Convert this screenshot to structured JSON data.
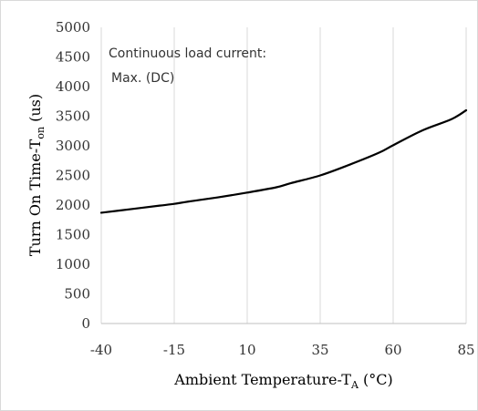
{
  "chart_data": {
    "type": "line",
    "title": "",
    "xlabel_main": "Ambient Temperature-T",
    "xlabel_sub": "A",
    "xlabel_unit": " (°C)",
    "ylabel_main": "Turn On Time-T",
    "ylabel_sub": "on",
    "ylabel_unit": " (us)",
    "xlim": [
      -40,
      85
    ],
    "ylim": [
      0,
      5000
    ],
    "x_ticks": [
      -40,
      -15,
      10,
      35,
      60,
      85
    ],
    "y_ticks": [
      0,
      500,
      1000,
      1500,
      2000,
      2500,
      3000,
      3500,
      4000,
      4500,
      5000
    ],
    "grid": {
      "horizontal": false,
      "vertical": true
    },
    "annotations": [
      "Continuous load current:",
      "Max. (DC)"
    ],
    "series": [
      {
        "name": "",
        "color": "#000000",
        "x": [
          -40,
          -30,
          -20,
          -15,
          -10,
          0,
          10,
          20,
          25,
          35,
          45,
          55,
          60,
          70,
          80,
          85
        ],
        "y": [
          1870,
          1930,
          1990,
          2020,
          2060,
          2130,
          2210,
          2300,
          2370,
          2500,
          2680,
          2880,
          3010,
          3260,
          3450,
          3600
        ]
      }
    ]
  }
}
